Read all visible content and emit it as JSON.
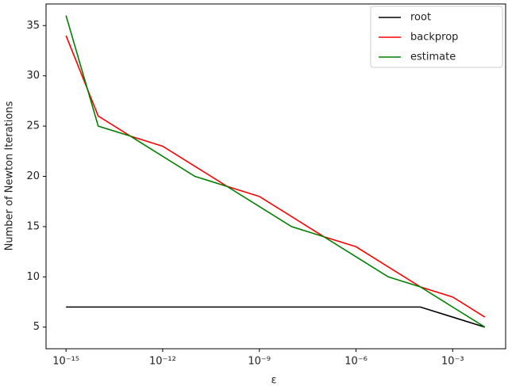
{
  "chart_data": {
    "type": "line",
    "log_x": true,
    "xlabel": "ε",
    "ylabel": "Number of Newton Iterations",
    "x": [
      1e-15,
      1e-14,
      1e-13,
      1e-12,
      1e-11,
      1e-10,
      1e-09,
      1e-08,
      1e-07,
      1e-06,
      1e-05,
      0.0001,
      0.001,
      0.01
    ],
    "series": [
      {
        "name": "root",
        "color": "#000000",
        "values": [
          7,
          7,
          7,
          7,
          7,
          7,
          7,
          7,
          7,
          7,
          7,
          7,
          6,
          5
        ]
      },
      {
        "name": "backprop",
        "color": "#ff0000",
        "values": [
          34,
          26,
          24,
          23,
          21,
          19,
          18,
          16,
          14,
          13,
          11,
          9,
          8,
          6
        ]
      },
      {
        "name": "estimate",
        "color": "#008000",
        "values": [
          36,
          25,
          24,
          22,
          20,
          19,
          17,
          15,
          14,
          12,
          10,
          9,
          7,
          5
        ]
      }
    ],
    "xlim": [
      2.4e-16,
      0.044
    ],
    "ylim": [
      2.85,
      37.15
    ],
    "xticks": [
      {
        "value": 1e-15,
        "label": "10⁻¹⁵"
      },
      {
        "value": 1e-12,
        "label": "10⁻¹²"
      },
      {
        "value": 1e-09,
        "label": "10⁻⁹"
      },
      {
        "value": 1e-06,
        "label": "10⁻⁶"
      },
      {
        "value": 0.001,
        "label": "10⁻³"
      }
    ],
    "yticks": [
      5,
      10,
      15,
      20,
      25,
      30,
      35
    ],
    "legend": "upper right"
  }
}
